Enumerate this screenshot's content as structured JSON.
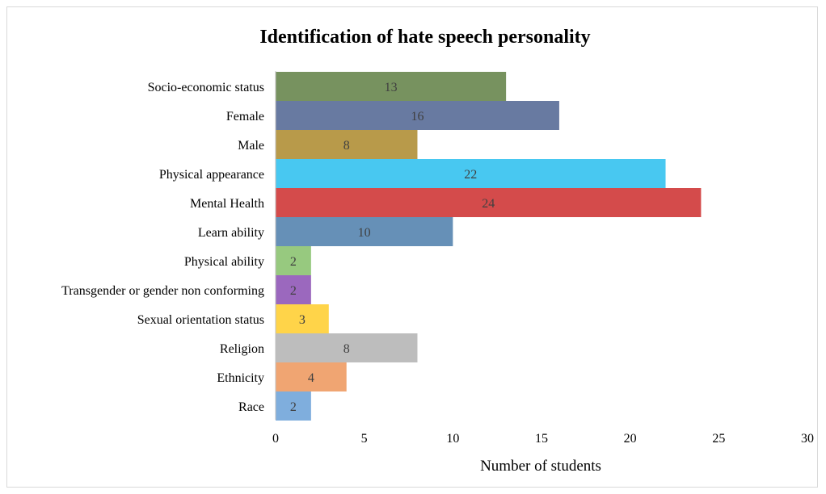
{
  "chart_data": {
    "type": "bar",
    "orientation": "horizontal",
    "title": "Identification of hate speech personality",
    "xlabel": "Number of students",
    "ylabel": "",
    "xlim": [
      0,
      30
    ],
    "xticks": [
      0,
      5,
      10,
      15,
      20,
      25,
      30
    ],
    "grid": false,
    "legend": "none",
    "categories": [
      "Socio-economic status",
      "Female",
      "Male",
      "Physical appearance",
      "Mental Health",
      "Learn ability",
      "Physical ability",
      "Transgender or gender non conforming",
      "Sexual orientation status",
      "Religion",
      "Ethnicity",
      "Race"
    ],
    "values": [
      13,
      16,
      8,
      22,
      24,
      10,
      2,
      2,
      3,
      8,
      4,
      2
    ],
    "colors": [
      "#77925f",
      "#687aa1",
      "#b89a4a",
      "#48c8f1",
      "#d44b4b",
      "#6690b7",
      "#97c97f",
      "#9b68be",
      "#ffd449",
      "#bdbdbd",
      "#f0a572",
      "#7faedd"
    ]
  }
}
